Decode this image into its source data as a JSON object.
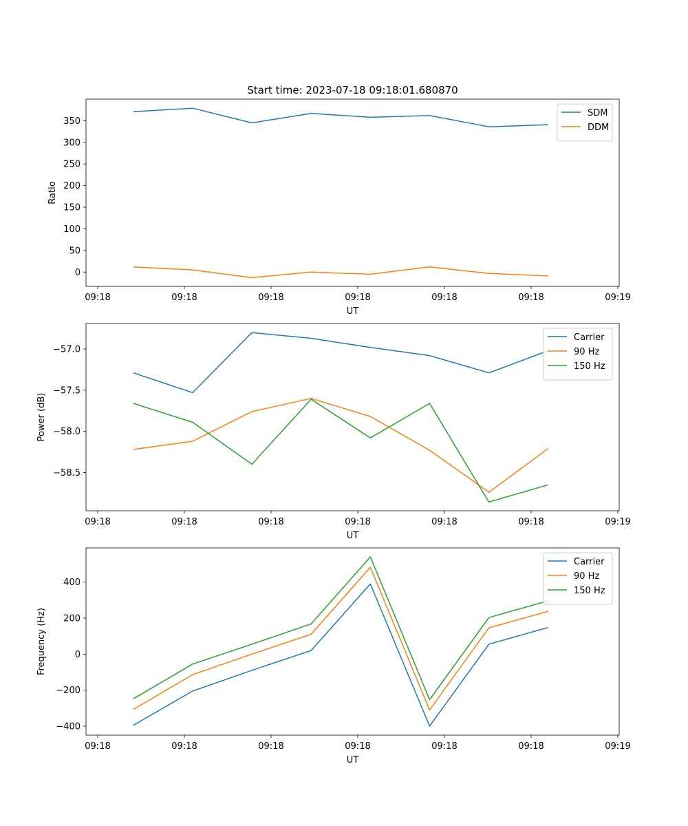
{
  "figure": {
    "title": "Start time: 2023-07-18 09:18:01.680870"
  },
  "chart_data": [
    {
      "type": "line",
      "title": "Start time: 2023-07-18 09:18:01.680870",
      "xlabel": "UT",
      "ylabel": "Ratio",
      "x_ticks": [
        "09:18",
        "09:18",
        "09:18",
        "09:18",
        "09:18",
        "09:18",
        "09:19"
      ],
      "x_index": [
        1,
        2,
        3,
        4,
        5,
        6,
        7,
        8
      ],
      "xlim": [
        0.2,
        9.2
      ],
      "ylim": [
        -33,
        400
      ],
      "y_ticks": [
        0,
        50,
        100,
        150,
        200,
        250,
        300,
        350
      ],
      "y_tick_labels": [
        "0",
        "50",
        "100",
        "150",
        "200",
        "250",
        "300",
        "350"
      ],
      "legend": "top-right",
      "series": [
        {
          "name": "SDM",
          "color": "#1f77b4",
          "values": [
            371,
            379,
            345,
            367,
            358,
            362,
            336,
            341
          ]
        },
        {
          "name": "DDM",
          "color": "#ff7f0e",
          "values": [
            12,
            5,
            -13,
            0,
            -5,
            12,
            -3,
            -9
          ]
        }
      ]
    },
    {
      "type": "line",
      "xlabel": "UT",
      "ylabel": "Power (dB)",
      "x_ticks": [
        "09:18",
        "09:18",
        "09:18",
        "09:18",
        "09:18",
        "09:18",
        "09:19"
      ],
      "x_index": [
        1,
        2,
        3,
        4,
        5,
        6,
        7,
        8
      ],
      "xlim": [
        0.2,
        9.2
      ],
      "ylim": [
        -58.965,
        -56.69
      ],
      "y_ticks": [
        -58.5,
        -58.0,
        -57.5,
        -57.0
      ],
      "y_tick_labels": [
        "−58.5",
        "−58.0",
        "−57.5",
        "−57.0"
      ],
      "legend": "top-right",
      "series": [
        {
          "name": "Carrier",
          "color": "#1f77b4",
          "values": [
            -57.29,
            -57.53,
            -56.8,
            -56.87,
            -56.98,
            -57.08,
            -57.29,
            -57.02
          ]
        },
        {
          "name": "90 Hz",
          "color": "#ff7f0e",
          "values": [
            -58.22,
            -58.12,
            -57.76,
            -57.6,
            -57.82,
            -58.23,
            -58.74,
            -58.21
          ]
        },
        {
          "name": "150 Hz",
          "color": "#2ca02c",
          "values": [
            -57.66,
            -57.89,
            -58.4,
            -57.61,
            -58.08,
            -57.66,
            -58.86,
            -58.65
          ]
        }
      ]
    },
    {
      "type": "line",
      "xlabel": "UT",
      "ylabel": "Frequency (Hz)",
      "x_ticks": [
        "09:18",
        "09:18",
        "09:18",
        "09:18",
        "09:18",
        "09:18",
        "09:19"
      ],
      "x_index": [
        1,
        2,
        3,
        4,
        5,
        6,
        7,
        8
      ],
      "xlim": [
        0.2,
        9.2
      ],
      "ylim": [
        -450,
        590
      ],
      "y_ticks": [
        -400,
        -200,
        0,
        200,
        400
      ],
      "y_tick_labels": [
        "−400",
        "−200",
        "0",
        "200",
        "400"
      ],
      "legend": "top-right",
      "series": [
        {
          "name": "Carrier",
          "color": "#1f77b4",
          "values": [
            -395,
            -205,
            -90,
            20,
            390,
            -400,
            55,
            148
          ]
        },
        {
          "name": "90 Hz",
          "color": "#ff7f0e",
          "values": [
            -307,
            -114,
            0,
            110,
            483,
            -310,
            146,
            238
          ]
        },
        {
          "name": "150 Hz",
          "color": "#2ca02c",
          "values": [
            -248,
            -55,
            55,
            168,
            540,
            -253,
            203,
            296
          ]
        }
      ]
    }
  ]
}
